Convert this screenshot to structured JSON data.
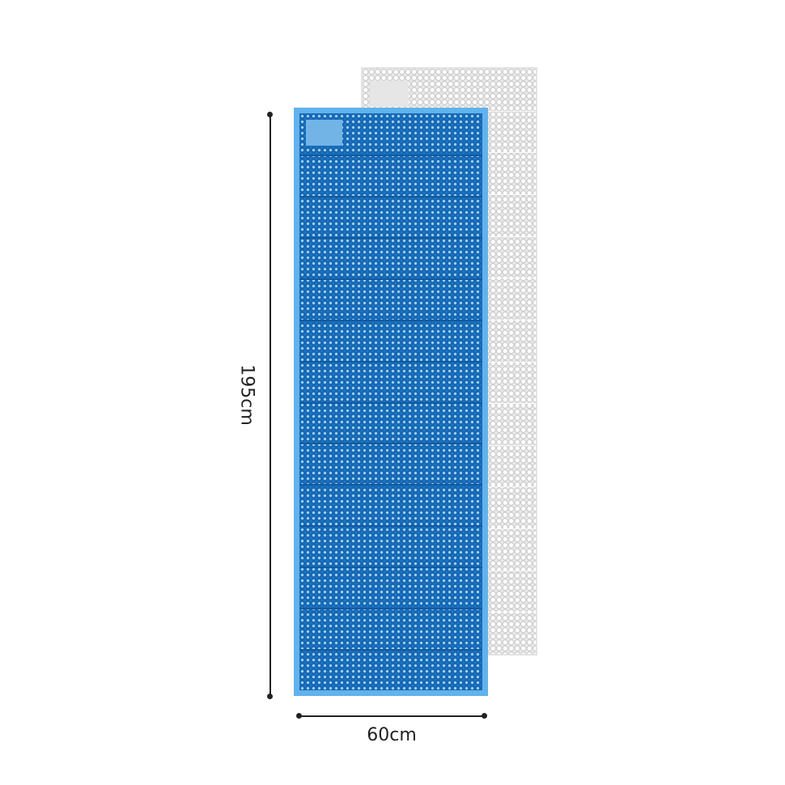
{
  "dimensions": {
    "length_label": "195cm",
    "width_label": "60cm"
  },
  "colors": {
    "blue_mat": "#1d74c4",
    "blue_border": "#62b2ec",
    "white_mat": "#ececec"
  },
  "blue_mat_folds": 14,
  "white_mat_folds": 14
}
